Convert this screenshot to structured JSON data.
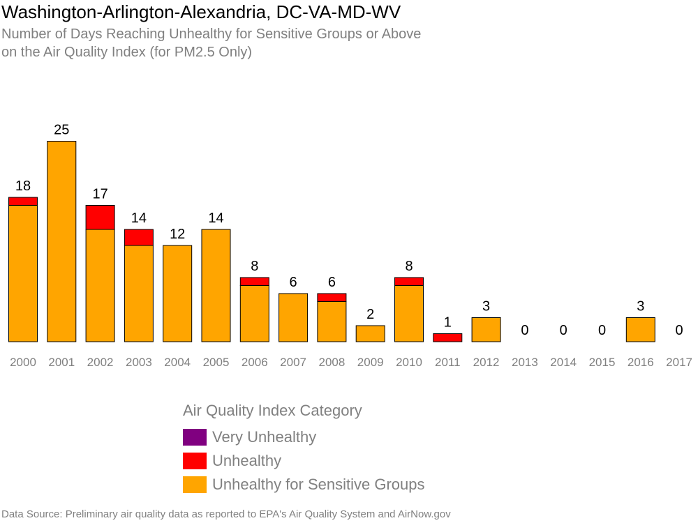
{
  "title": "Washington-Arlington-Alexandria, DC-VA-MD-WV",
  "subtitle_line1": "Number of Days Reaching Unhealthy for Sensitive Groups or Above",
  "subtitle_line2": "on the Air Quality Index (for PM2.5 Only)",
  "source": "Data Source: Preliminary air quality data as reported to EPA's Air Quality System and AirNow.gov",
  "legend": {
    "title": "Air Quality Index Category",
    "items": [
      {
        "label": "Very Unhealthy",
        "color": "#800080"
      },
      {
        "label": "Unhealthy",
        "color": "#ff0000"
      },
      {
        "label": "Unhealthy for Sensitive Groups",
        "color": "#ffa500"
      }
    ]
  },
  "chart_data": {
    "type": "bar",
    "stacked": true,
    "categories": [
      "2000",
      "2001",
      "2002",
      "2003",
      "2004",
      "2005",
      "2006",
      "2007",
      "2008",
      "2009",
      "2010",
      "2011",
      "2012",
      "2013",
      "2014",
      "2015",
      "2016",
      "2017"
    ],
    "series": [
      {
        "name": "Unhealthy for Sensitive Groups",
        "color": "#ffa500",
        "values": [
          17,
          25,
          14,
          12,
          12,
          14,
          7,
          6,
          5,
          2,
          7,
          0,
          3,
          0,
          0,
          0,
          3,
          0
        ]
      },
      {
        "name": "Unhealthy",
        "color": "#ff0000",
        "values": [
          1,
          0,
          3,
          2,
          0,
          0,
          1,
          0,
          1,
          0,
          1,
          1,
          0,
          0,
          0,
          0,
          0,
          0
        ]
      },
      {
        "name": "Very Unhealthy",
        "color": "#800080",
        "values": [
          0,
          0,
          0,
          0,
          0,
          0,
          0,
          0,
          0,
          0,
          0,
          0,
          0,
          0,
          0,
          0,
          0,
          0
        ]
      }
    ],
    "totals": [
      18,
      25,
      17,
      14,
      12,
      14,
      8,
      6,
      6,
      2,
      8,
      1,
      3,
      0,
      0,
      0,
      3,
      0
    ]
  }
}
